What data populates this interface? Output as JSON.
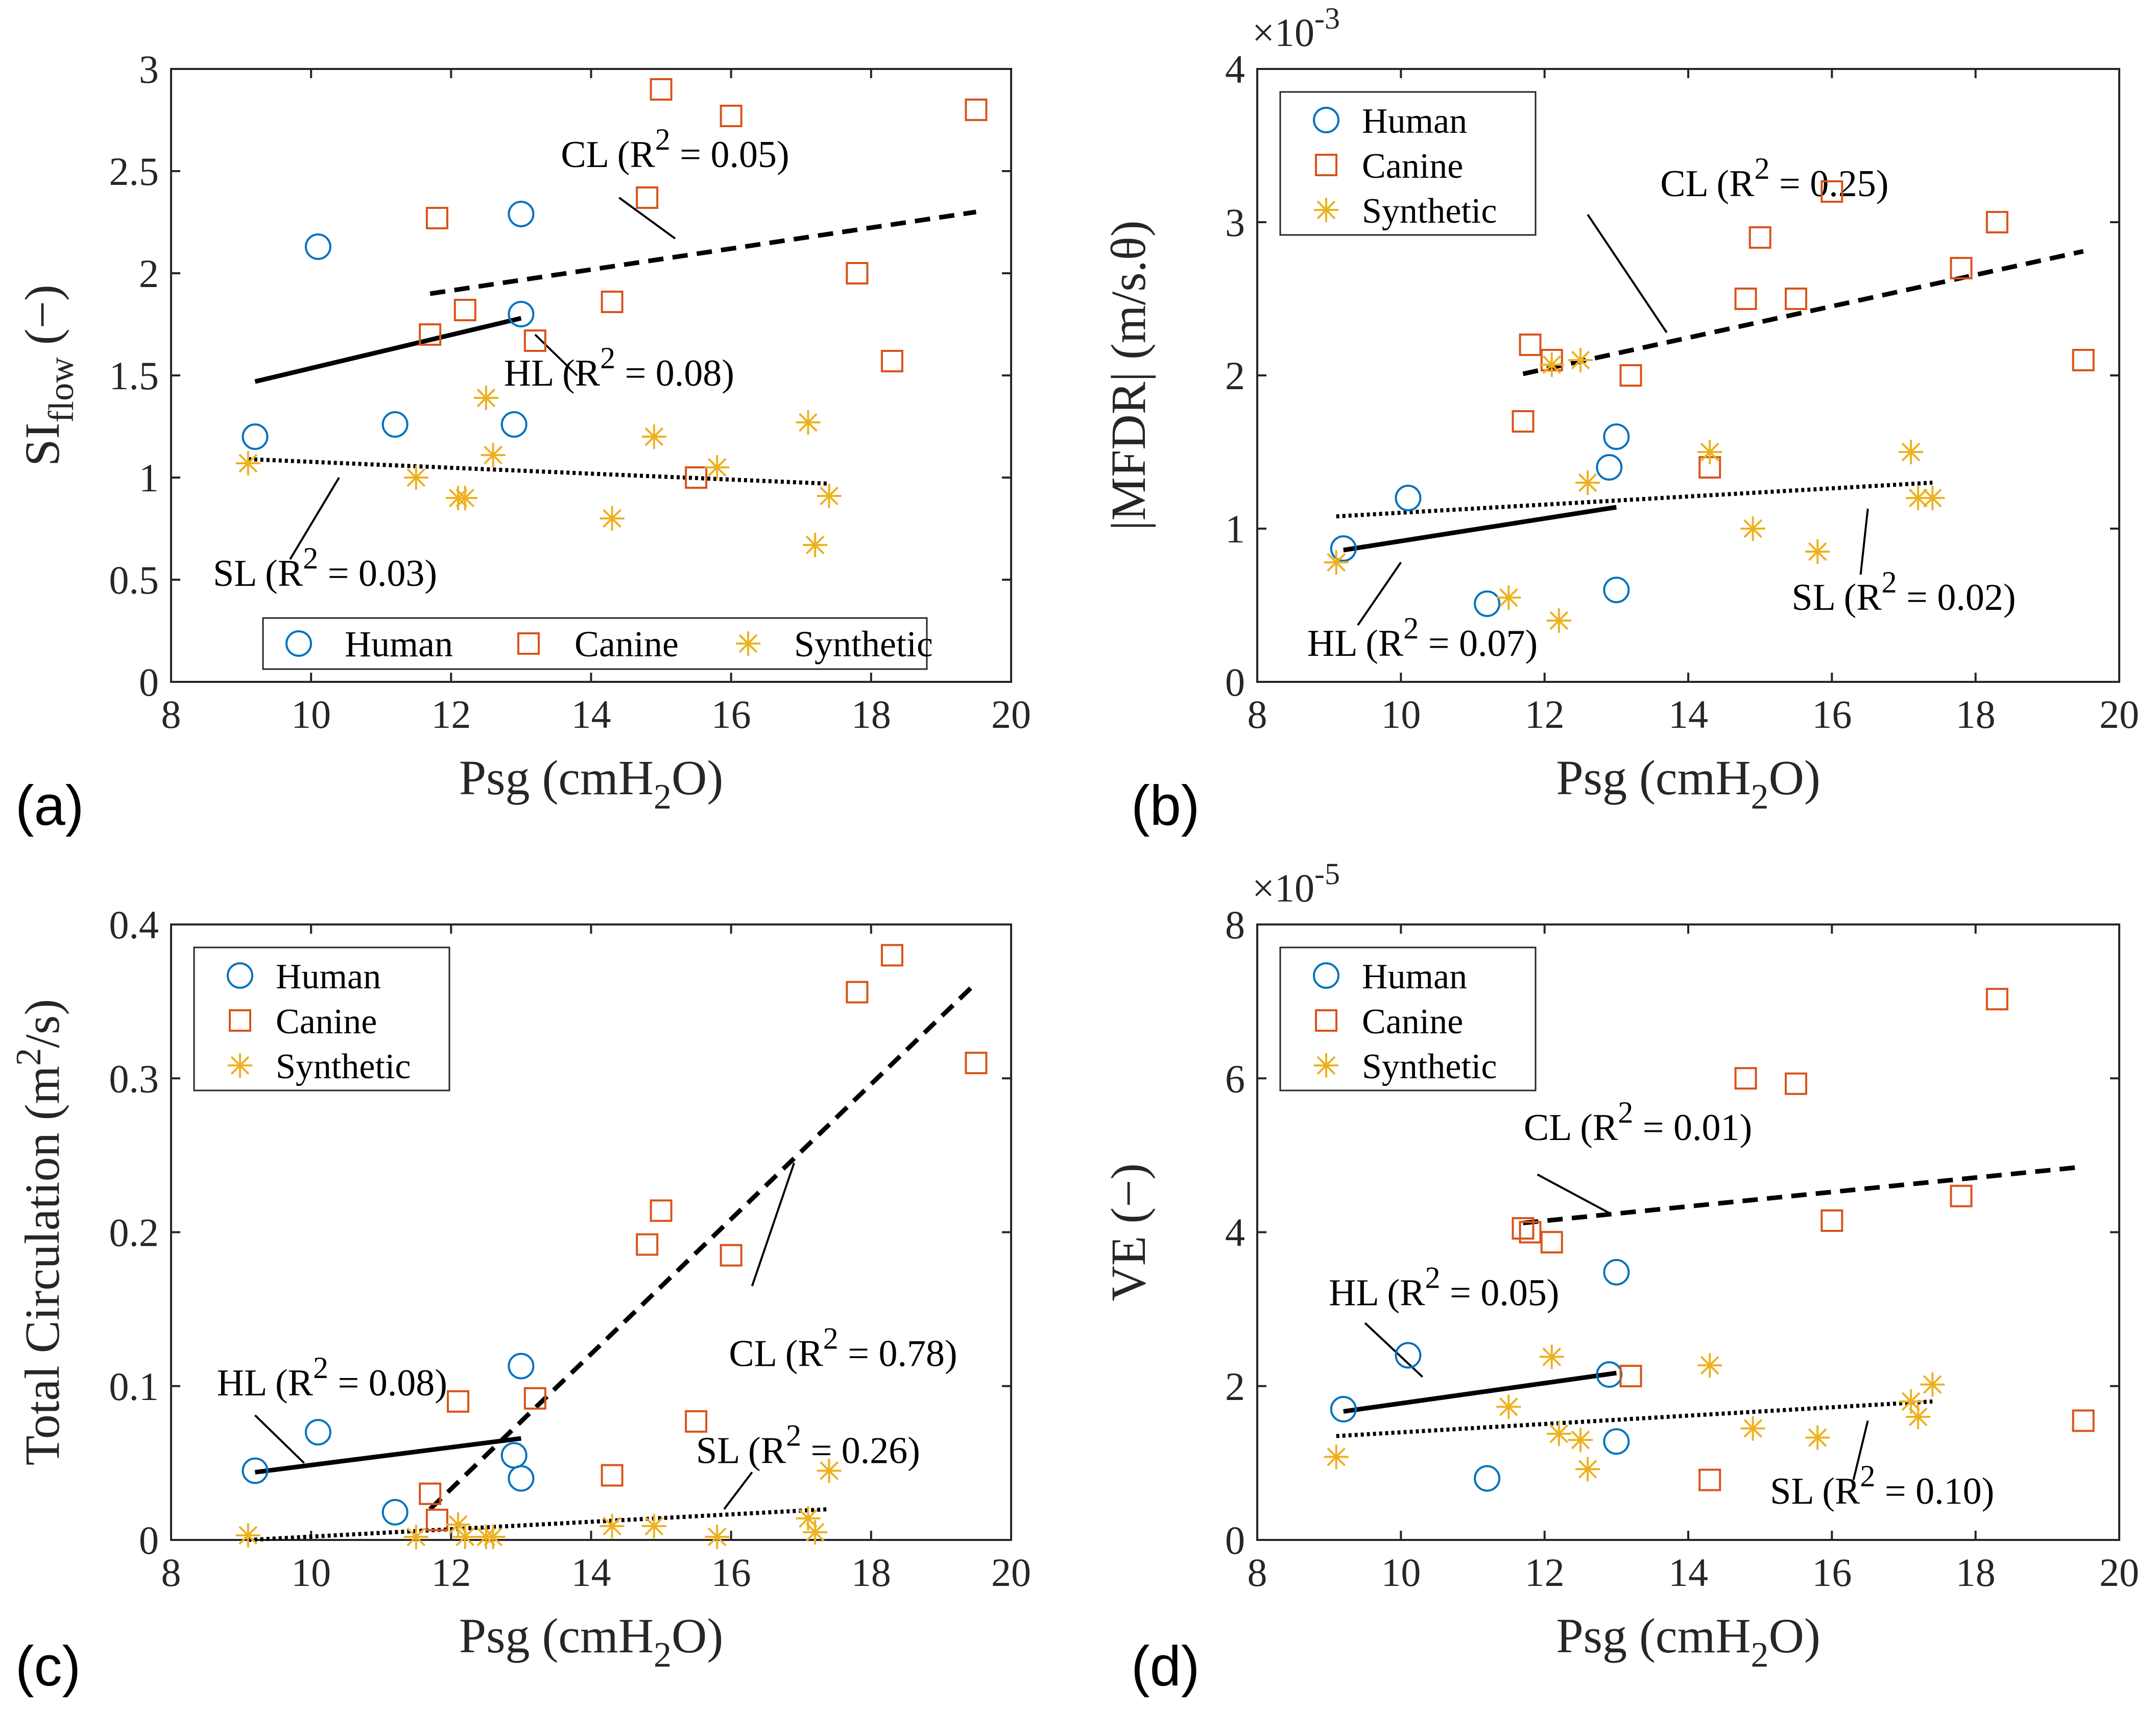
{
  "series_styles": {
    "Human": {
      "color": "#0072BD",
      "marker": "circle"
    },
    "Canine": {
      "color": "#D95319",
      "marker": "square"
    },
    "Synthetic": {
      "color": "#EDB120",
      "marker": "asterisk"
    }
  },
  "chart_data": [
    {
      "type": "scatter",
      "panel_label": "(a)",
      "ylabel_main": "SI",
      "ylabel_sub": "flow",
      "ylabel_tail": " (−)",
      "xlabel_main": "Psg (cmH",
      "xlabel_sub": "2",
      "xlabel_tail": "O)",
      "xlim": [
        8,
        20
      ],
      "ylim": [
        0,
        3
      ],
      "xticks": [
        "8",
        "10",
        "12",
        "14",
        "16",
        "18",
        "20"
      ],
      "yticks": [
        "0",
        "0.5",
        "1",
        "1.5",
        "2",
        "2.5",
        "3"
      ],
      "exponent": null,
      "legend_position": "bottom",
      "legend": [
        "Human",
        "Canine",
        "Synthetic"
      ],
      "series": [
        {
          "name": "Human",
          "points": [
            [
              9.2,
              1.2
            ],
            [
              10.1,
              2.13
            ],
            [
              11.2,
              1.26
            ],
            [
              12.9,
              1.26
            ],
            [
              13.0,
              1.8
            ],
            [
              13.0,
              2.29
            ]
          ]
        },
        {
          "name": "Canine",
          "points": [
            [
              11.7,
              1.7
            ],
            [
              11.8,
              2.27
            ],
            [
              12.2,
              1.82
            ],
            [
              13.2,
              1.67
            ],
            [
              14.3,
              1.86
            ],
            [
              14.8,
              2.37
            ],
            [
              15.0,
              2.9
            ],
            [
              15.5,
              1.0
            ],
            [
              16.0,
              2.77
            ],
            [
              17.8,
              2.0
            ],
            [
              18.3,
              1.57
            ],
            [
              19.5,
              2.8
            ]
          ]
        },
        {
          "name": "Synthetic",
          "points": [
            [
              9.1,
              1.07
            ],
            [
              11.5,
              1.0
            ],
            [
              12.1,
              0.9
            ],
            [
              12.2,
              0.9
            ],
            [
              12.5,
              1.39
            ],
            [
              12.6,
              1.11
            ],
            [
              14.3,
              0.8
            ],
            [
              14.9,
              1.2
            ],
            [
              15.8,
              1.05
            ],
            [
              17.1,
              1.27
            ],
            [
              17.2,
              0.67
            ],
            [
              17.4,
              0.91
            ]
          ]
        }
      ],
      "fits": [
        {
          "name": "HL",
          "style": "solid",
          "x": [
            9.2,
            13.0
          ],
          "y": [
            1.47,
            1.78
          ]
        },
        {
          "name": "CL",
          "style": "dashed",
          "x": [
            11.7,
            19.5
          ],
          "y": [
            1.9,
            2.3
          ]
        },
        {
          "name": "SL",
          "style": "dotted",
          "x": [
            9.1,
            17.4
          ],
          "y": [
            1.09,
            0.97
          ]
        }
      ],
      "annotations": [
        {
          "text": "CL (R",
          "sup": "2",
          "rest": " = 0.05)",
          "at": [
            15.2,
            2.52
          ],
          "line": [
            [
              14.4,
              2.37
            ],
            [
              15.2,
              2.17
            ]
          ]
        },
        {
          "text": "HL (R",
          "sup": "2",
          "rest": " = 0.08)",
          "at": [
            14.4,
            1.45
          ],
          "line": [
            [
              13.2,
              1.7
            ],
            [
              13.8,
              1.5
            ]
          ]
        },
        {
          "text": "SL (R",
          "sup": "2",
          "rest": " = 0.03)",
          "at": [
            10.2,
            0.47
          ],
          "line": [
            [
              9.7,
              0.6
            ],
            [
              10.4,
              1.0
            ]
          ]
        }
      ]
    },
    {
      "type": "scatter",
      "panel_label": "(b)",
      "ylabel_main": "|MFDR| (m/s.",
      "ylabel_sub": "",
      "ylabel_tail": "θ)",
      "xlabel_main": "Psg (cmH",
      "xlabel_sub": "2",
      "xlabel_tail": "O)",
      "xlim": [
        8,
        20
      ],
      "ylim": [
        0,
        4
      ],
      "xticks": [
        "8",
        "10",
        "12",
        "14",
        "16",
        "18",
        "20"
      ],
      "yticks": [
        "0",
        "1",
        "2",
        "3",
        "4"
      ],
      "exponent": "×10",
      "exponent_power": "-3",
      "legend_position": "top-left",
      "legend": [
        "Human",
        "Canine",
        "Synthetic"
      ],
      "series": [
        {
          "name": "Human",
          "points": [
            [
              9.2,
              0.87
            ],
            [
              10.1,
              1.2
            ],
            [
              11.2,
              0.51
            ],
            [
              12.9,
              1.4
            ],
            [
              13.0,
              0.6
            ],
            [
              13.0,
              1.6
            ]
          ]
        },
        {
          "name": "Canine",
          "points": [
            [
              11.7,
              1.7
            ],
            [
              11.8,
              2.2
            ],
            [
              12.1,
              2.1
            ],
            [
              13.2,
              2.0
            ],
            [
              14.3,
              1.4
            ],
            [
              14.8,
              2.5
            ],
            [
              15.0,
              2.9
            ],
            [
              15.5,
              2.5
            ],
            [
              16.0,
              3.2
            ],
            [
              17.8,
              2.7
            ],
            [
              18.3,
              3.0
            ],
            [
              19.5,
              2.1
            ]
          ]
        },
        {
          "name": "Synthetic",
          "points": [
            [
              9.1,
              0.78
            ],
            [
              11.5,
              0.55
            ],
            [
              12.1,
              2.07
            ],
            [
              12.2,
              0.4
            ],
            [
              12.5,
              2.1
            ],
            [
              12.6,
              1.3
            ],
            [
              14.3,
              1.5
            ],
            [
              14.9,
              1.0
            ],
            [
              15.8,
              0.85
            ],
            [
              17.1,
              1.5
            ],
            [
              17.2,
              1.2
            ],
            [
              17.4,
              1.2
            ]
          ]
        }
      ],
      "fits": [
        {
          "name": "HL",
          "style": "solid",
          "x": [
            9.2,
            13.0
          ],
          "y": [
            0.86,
            1.14
          ]
        },
        {
          "name": "CL",
          "style": "dashed",
          "x": [
            11.7,
            19.5
          ],
          "y": [
            2.01,
            2.81
          ]
        },
        {
          "name": "SL",
          "style": "dotted",
          "x": [
            9.1,
            17.4
          ],
          "y": [
            1.08,
            1.3
          ]
        }
      ],
      "annotations": [
        {
          "text": "CL (R",
          "sup": "2",
          "rest": " = 0.25)",
          "at": [
            15.2,
            3.17
          ],
          "line": [
            [
              12.6,
              3.05
            ],
            [
              13.7,
              2.28
            ]
          ]
        },
        {
          "text": "HL (R",
          "sup": "2",
          "rest": " = 0.07)",
          "at": [
            10.3,
            0.17
          ],
          "line": [
            [
              9.4,
              0.37
            ],
            [
              10.0,
              0.78
            ]
          ]
        },
        {
          "text": "SL (R",
          "sup": "2",
          "rest": " = 0.02)",
          "at": [
            17.0,
            0.47
          ],
          "line": [
            [
              16.4,
              0.7
            ],
            [
              16.5,
              1.13
            ]
          ]
        }
      ]
    },
    {
      "type": "scatter",
      "panel_label": "(c)",
      "ylabel_main": "Total Circulation (m",
      "ylabel_sub": "",
      "ylabel_sup": "2",
      "ylabel_tail": "/s)",
      "xlabel_main": "Psg (cmH",
      "xlabel_sub": "2",
      "xlabel_tail": "O)",
      "xlim": [
        8,
        20
      ],
      "ylim": [
        0,
        0.4
      ],
      "xticks": [
        "8",
        "10",
        "12",
        "14",
        "16",
        "18",
        "20"
      ],
      "yticks": [
        "0",
        "0.1",
        "0.2",
        "0.3",
        "0.4"
      ],
      "exponent": null,
      "legend_position": "top-left",
      "legend": [
        "Human",
        "Canine",
        "Synthetic"
      ],
      "series": [
        {
          "name": "Human",
          "points": [
            [
              9.2,
              0.045
            ],
            [
              10.1,
              0.07
            ],
            [
              11.2,
              0.018
            ],
            [
              12.9,
              0.055
            ],
            [
              13.0,
              0.04
            ],
            [
              13.0,
              0.113
            ]
          ]
        },
        {
          "name": "Canine",
          "points": [
            [
              11.7,
              0.03
            ],
            [
              11.8,
              0.013
            ],
            [
              12.1,
              0.09
            ],
            [
              13.2,
              0.092
            ],
            [
              14.3,
              0.042
            ],
            [
              14.8,
              0.192
            ],
            [
              15.0,
              0.214
            ],
            [
              15.5,
              0.077
            ],
            [
              16.0,
              0.185
            ],
            [
              17.8,
              0.356
            ],
            [
              18.3,
              0.38
            ],
            [
              19.5,
              0.31
            ]
          ]
        },
        {
          "name": "Synthetic",
          "points": [
            [
              9.1,
              0.003
            ],
            [
              11.5,
              0.002
            ],
            [
              12.1,
              0.01
            ],
            [
              12.2,
              0.002
            ],
            [
              12.5,
              0.002
            ],
            [
              12.6,
              0.002
            ],
            [
              14.3,
              0.009
            ],
            [
              14.9,
              0.009
            ],
            [
              15.8,
              0.002
            ],
            [
              17.1,
              0.014
            ],
            [
              17.2,
              0.005
            ],
            [
              17.4,
              0.045
            ]
          ]
        }
      ],
      "fits": [
        {
          "name": "HL",
          "style": "solid",
          "x": [
            9.2,
            13.0
          ],
          "y": [
            0.044,
            0.066
          ]
        },
        {
          "name": "CL",
          "style": "dashed",
          "x": [
            11.7,
            19.5
          ],
          "y": [
            0.02,
            0.362
          ]
        },
        {
          "name": "SL",
          "style": "dotted",
          "x": [
            9.1,
            17.4
          ],
          "y": [
            0.0,
            0.02
          ]
        }
      ],
      "annotations": [
        {
          "text": "CL (R",
          "sup": "2",
          "rest": " = 0.78)",
          "at": [
            17.6,
            0.113
          ],
          "line": [
            [
              16.3,
              0.165
            ],
            [
              16.9,
              0.245
            ]
          ]
        },
        {
          "text": "HL (R",
          "sup": "2",
          "rest": " = 0.08)",
          "at": [
            10.3,
            0.094
          ],
          "line": [
            [
              9.2,
              0.081
            ],
            [
              9.9,
              0.05
            ]
          ]
        },
        {
          "text": "SL (R",
          "sup": "2",
          "rest": " = 0.26)",
          "at": [
            17.1,
            0.05
          ],
          "line": [
            [
              16.3,
              0.044
            ],
            [
              15.9,
              0.02
            ]
          ]
        }
      ]
    },
    {
      "type": "scatter",
      "panel_label": "(d)",
      "ylabel_main": "VE (−)",
      "ylabel_sub": "",
      "ylabel_tail": "",
      "xlabel_main": "Psg (cmH",
      "xlabel_sub": "2",
      "xlabel_tail": "O)",
      "xlim": [
        8,
        20
      ],
      "ylim": [
        0,
        8
      ],
      "xticks": [
        "8",
        "10",
        "12",
        "14",
        "16",
        "18",
        "20"
      ],
      "yticks": [
        "0",
        "2",
        "4",
        "6",
        "8"
      ],
      "exponent": "×10",
      "exponent_power": "-5",
      "legend_position": "top-left",
      "legend": [
        "Human",
        "Canine",
        "Synthetic"
      ],
      "series": [
        {
          "name": "Human",
          "points": [
            [
              9.2,
              1.7
            ],
            [
              10.1,
              2.4
            ],
            [
              11.2,
              0.8
            ],
            [
              12.9,
              2.15
            ],
            [
              13.0,
              1.28
            ],
            [
              13.0,
              3.48
            ]
          ]
        },
        {
          "name": "Canine",
          "points": [
            [
              11.7,
              4.05
            ],
            [
              11.8,
              4.0
            ],
            [
              12.1,
              3.87
            ],
            [
              13.2,
              2.13
            ],
            [
              14.3,
              0.78
            ],
            [
              14.8,
              6.0
            ],
            [
              15.5,
              5.93
            ],
            [
              16.0,
              4.15
            ],
            [
              17.8,
              4.47
            ],
            [
              18.3,
              7.03
            ],
            [
              19.5,
              1.55
            ]
          ]
        },
        {
          "name": "Synthetic",
          "points": [
            [
              9.1,
              1.08
            ],
            [
              11.5,
              1.73
            ],
            [
              12.1,
              2.38
            ],
            [
              12.2,
              1.38
            ],
            [
              12.5,
              1.3
            ],
            [
              12.6,
              0.92
            ],
            [
              14.3,
              2.27
            ],
            [
              14.9,
              1.45
            ],
            [
              15.8,
              1.33
            ],
            [
              17.1,
              1.8
            ],
            [
              17.2,
              1.6
            ],
            [
              17.4,
              2.02
            ]
          ]
        }
      ],
      "fits": [
        {
          "name": "HL",
          "style": "solid",
          "x": [
            9.2,
            13.0
          ],
          "y": [
            1.67,
            2.17
          ]
        },
        {
          "name": "CL",
          "style": "dashed",
          "x": [
            11.7,
            19.5
          ],
          "y": [
            4.12,
            4.85
          ]
        },
        {
          "name": "SL",
          "style": "dotted",
          "x": [
            9.1,
            17.4
          ],
          "y": [
            1.35,
            1.8
          ]
        }
      ],
      "annotations": [
        {
          "text": "CL (R",
          "sup": "2",
          "rest": " = 0.01)",
          "at": [
            13.3,
            5.2
          ],
          "line": [
            [
              11.9,
              4.75
            ],
            [
              12.9,
              4.25
            ]
          ]
        },
        {
          "text": "HL (R",
          "sup": "2",
          "rest": " = 0.05)",
          "at": [
            10.6,
            3.05
          ],
          "line": [
            [
              9.5,
              2.82
            ],
            [
              10.3,
              2.12
            ]
          ]
        },
        {
          "text": "SL (R",
          "sup": "2",
          "rest": " = 0.10)",
          "at": [
            16.7,
            0.47
          ],
          "line": [
            [
              16.3,
              0.78
            ],
            [
              16.5,
              1.55
            ]
          ]
        }
      ]
    }
  ]
}
